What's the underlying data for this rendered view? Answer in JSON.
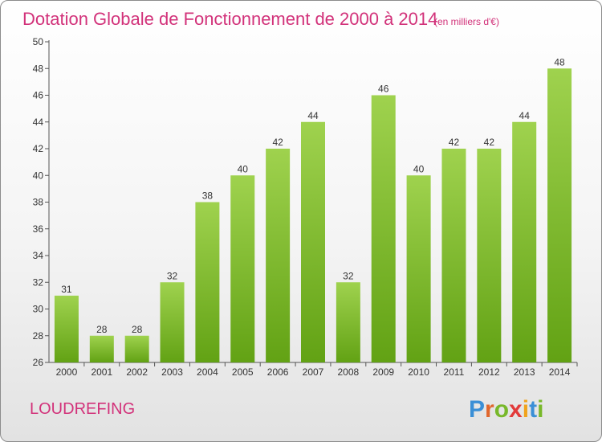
{
  "chart_data": {
    "type": "bar",
    "title": "Dotation Globale de Fonctionnement de 2000 à 2014",
    "subtitle": "(en milliers d'€)",
    "categories": [
      "2000",
      "2001",
      "2002",
      "2003",
      "2004",
      "2005",
      "2006",
      "2007",
      "2008",
      "2009",
      "2010",
      "2011",
      "2012",
      "2013",
      "2014"
    ],
    "values": [
      31,
      28,
      28,
      32,
      38,
      40,
      42,
      44,
      32,
      46,
      40,
      42,
      42,
      44,
      48
    ],
    "ylim": [
      26,
      50
    ],
    "yticks": [
      "26",
      "28",
      "30",
      "32",
      "34",
      "36",
      "38",
      "40",
      "42",
      "44",
      "46",
      "48",
      "50"
    ],
    "xlabel": "",
    "ylabel": "",
    "grid": false
  },
  "commune": "LOUDREFING",
  "brand": {
    "letters": [
      "P",
      "r",
      "o",
      "x",
      "i",
      "t",
      "i"
    ],
    "colors": [
      "#3a8fd6",
      "#e0662c",
      "#78b82a",
      "#e23a3a",
      "#f0a31c",
      "#3a8fd6",
      "#78b82a"
    ]
  },
  "colors": {
    "bar_light": "#9fd24e",
    "bar_dark": "#62a214",
    "accent": "#d2327a"
  }
}
